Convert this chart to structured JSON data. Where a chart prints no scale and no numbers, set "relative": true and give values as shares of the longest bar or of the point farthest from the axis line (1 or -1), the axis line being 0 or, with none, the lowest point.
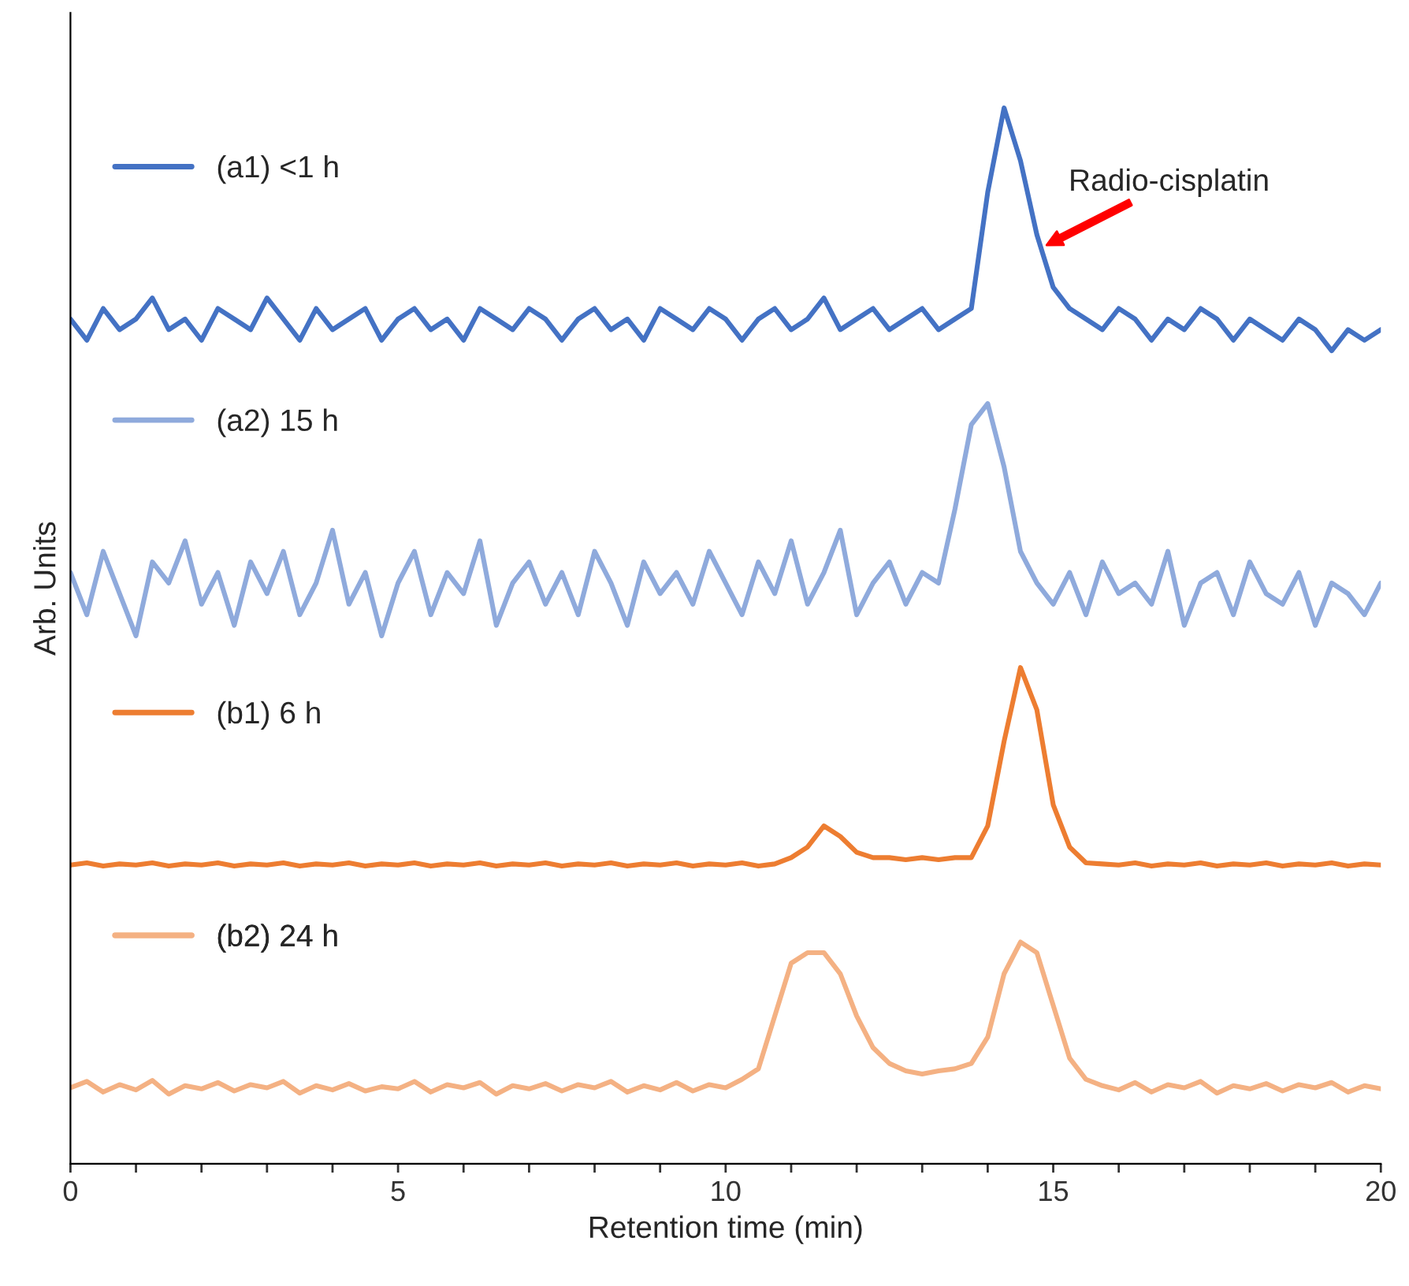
{
  "chart_data": {
    "type": "line",
    "relative": true,
    "xlabel": "Retention time (min)",
    "ylabel": "Arb. Units",
    "xlim": [
      0,
      20
    ],
    "xticks": [
      0,
      {
        "value": 1,
        "label": null
      },
      {
        "value": 2,
        "label": null
      },
      {
        "value": 3,
        "label": null
      },
      {
        "value": 4,
        "label": null
      },
      5,
      {
        "value": 6,
        "label": null
      },
      {
        "value": 7,
        "label": null
      },
      {
        "value": 8,
        "label": null
      },
      {
        "value": 9,
        "label": null
      },
      10,
      {
        "value": 11,
        "label": null
      },
      {
        "value": 12,
        "label": null
      },
      {
        "value": 13,
        "label": null
      },
      {
        "value": 14,
        "label": null
      },
      15,
      {
        "value": 16,
        "label": null
      },
      {
        "value": 17,
        "label": null
      },
      {
        "value": 18,
        "label": null
      },
      {
        "value": 19,
        "label": null
      },
      20
    ],
    "grid": false,
    "legend": "left",
    "marker": "none",
    "line_style": "solid",
    "annotations": [
      {
        "text": "Radio-cisplatin",
        "x": 14.9,
        "y": 0.87
      }
    ],
    "x": [
      0,
      0.25,
      0.5,
      0.75,
      1,
      1.25,
      1.5,
      1.75,
      2,
      2.25,
      2.5,
      2.75,
      3,
      3.25,
      3.5,
      3.75,
      4,
      4.25,
      4.5,
      4.75,
      5,
      5.25,
      5.5,
      5.75,
      6,
      6.25,
      6.5,
      6.75,
      7,
      7.25,
      7.5,
      7.75,
      8,
      8.25,
      8.5,
      8.75,
      9,
      9.25,
      9.5,
      9.75,
      10,
      10.25,
      10.5,
      10.75,
      11,
      11.25,
      11.5,
      11.75,
      12,
      12.25,
      12.5,
      12.75,
      13,
      13.25,
      13.5,
      13.75,
      14,
      14.25,
      14.5,
      14.75,
      15,
      15.25,
      15.5,
      15.75,
      16,
      16.25,
      16.5,
      16.75,
      17,
      17.25,
      17.5,
      17.75,
      18,
      18.25,
      18.5,
      18.75,
      19,
      19.25,
      19.5,
      19.75,
      20
    ],
    "series": [
      {
        "name": "(a1) <1 h",
        "color": "#4472c4",
        "values": [
          0.8,
          0.78,
          0.81,
          0.79,
          0.8,
          0.82,
          0.79,
          0.8,
          0.78,
          0.81,
          0.8,
          0.79,
          0.82,
          0.8,
          0.78,
          0.81,
          0.79,
          0.8,
          0.81,
          0.78,
          0.8,
          0.81,
          0.79,
          0.8,
          0.78,
          0.81,
          0.8,
          0.79,
          0.81,
          0.8,
          0.78,
          0.8,
          0.81,
          0.79,
          0.8,
          0.78,
          0.81,
          0.8,
          0.79,
          0.81,
          0.8,
          0.78,
          0.8,
          0.81,
          0.79,
          0.8,
          0.82,
          0.79,
          0.8,
          0.81,
          0.79,
          0.8,
          0.81,
          0.79,
          0.8,
          0.81,
          0.92,
          1.0,
          0.95,
          0.88,
          0.83,
          0.81,
          0.8,
          0.79,
          0.81,
          0.8,
          0.78,
          0.8,
          0.79,
          0.81,
          0.8,
          0.78,
          0.8,
          0.79,
          0.78,
          0.8,
          0.79,
          0.77,
          0.79,
          0.78,
          0.79
        ]
      },
      {
        "name": "(a2) 15 h",
        "color": "#8faadc",
        "values": [
          0.56,
          0.52,
          0.58,
          0.54,
          0.5,
          0.57,
          0.55,
          0.59,
          0.53,
          0.56,
          0.51,
          0.57,
          0.54,
          0.58,
          0.52,
          0.55,
          0.6,
          0.53,
          0.56,
          0.5,
          0.55,
          0.58,
          0.52,
          0.56,
          0.54,
          0.59,
          0.51,
          0.55,
          0.57,
          0.53,
          0.56,
          0.52,
          0.58,
          0.55,
          0.51,
          0.57,
          0.54,
          0.56,
          0.53,
          0.58,
          0.55,
          0.52,
          0.57,
          0.54,
          0.59,
          0.53,
          0.56,
          0.6,
          0.52,
          0.55,
          0.57,
          0.53,
          0.56,
          0.55,
          0.62,
          0.7,
          0.72,
          0.66,
          0.58,
          0.55,
          0.53,
          0.56,
          0.52,
          0.57,
          0.54,
          0.55,
          0.53,
          0.58,
          0.51,
          0.55,
          0.56,
          0.52,
          0.57,
          0.54,
          0.53,
          0.56,
          0.51,
          0.55,
          0.54,
          0.52,
          0.55
        ]
      },
      {
        "name": "(b1) 6 h",
        "color": "#ed7d31",
        "values": [
          0.283,
          0.285,
          0.282,
          0.284,
          0.283,
          0.285,
          0.282,
          0.284,
          0.283,
          0.285,
          0.282,
          0.284,
          0.283,
          0.285,
          0.282,
          0.284,
          0.283,
          0.285,
          0.282,
          0.284,
          0.283,
          0.285,
          0.282,
          0.284,
          0.283,
          0.285,
          0.282,
          0.284,
          0.283,
          0.285,
          0.282,
          0.284,
          0.283,
          0.285,
          0.282,
          0.284,
          0.283,
          0.285,
          0.282,
          0.284,
          0.283,
          0.285,
          0.282,
          0.284,
          0.29,
          0.3,
          0.32,
          0.31,
          0.295,
          0.29,
          0.29,
          0.288,
          0.29,
          0.288,
          0.29,
          0.29,
          0.32,
          0.4,
          0.47,
          0.43,
          0.34,
          0.3,
          0.285,
          0.284,
          0.283,
          0.285,
          0.282,
          0.284,
          0.283,
          0.285,
          0.282,
          0.284,
          0.283,
          0.285,
          0.282,
          0.284,
          0.283,
          0.285,
          0.282,
          0.284,
          0.283
        ]
      },
      {
        "name": "(b2) 24 h",
        "color": "#f4b183",
        "values": [
          0.072,
          0.078,
          0.068,
          0.075,
          0.07,
          0.079,
          0.066,
          0.074,
          0.071,
          0.077,
          0.069,
          0.075,
          0.072,
          0.078,
          0.067,
          0.074,
          0.07,
          0.076,
          0.069,
          0.073,
          0.071,
          0.078,
          0.068,
          0.075,
          0.072,
          0.077,
          0.066,
          0.074,
          0.071,
          0.076,
          0.069,
          0.075,
          0.072,
          0.078,
          0.068,
          0.074,
          0.07,
          0.077,
          0.069,
          0.075,
          0.072,
          0.08,
          0.09,
          0.14,
          0.19,
          0.2,
          0.2,
          0.18,
          0.14,
          0.11,
          0.095,
          0.088,
          0.085,
          0.088,
          0.09,
          0.095,
          0.12,
          0.18,
          0.21,
          0.2,
          0.15,
          0.1,
          0.08,
          0.074,
          0.07,
          0.077,
          0.068,
          0.075,
          0.072,
          0.078,
          0.067,
          0.074,
          0.071,
          0.076,
          0.069,
          0.075,
          0.072,
          0.077,
          0.068,
          0.074,
          0.071
        ]
      }
    ]
  }
}
